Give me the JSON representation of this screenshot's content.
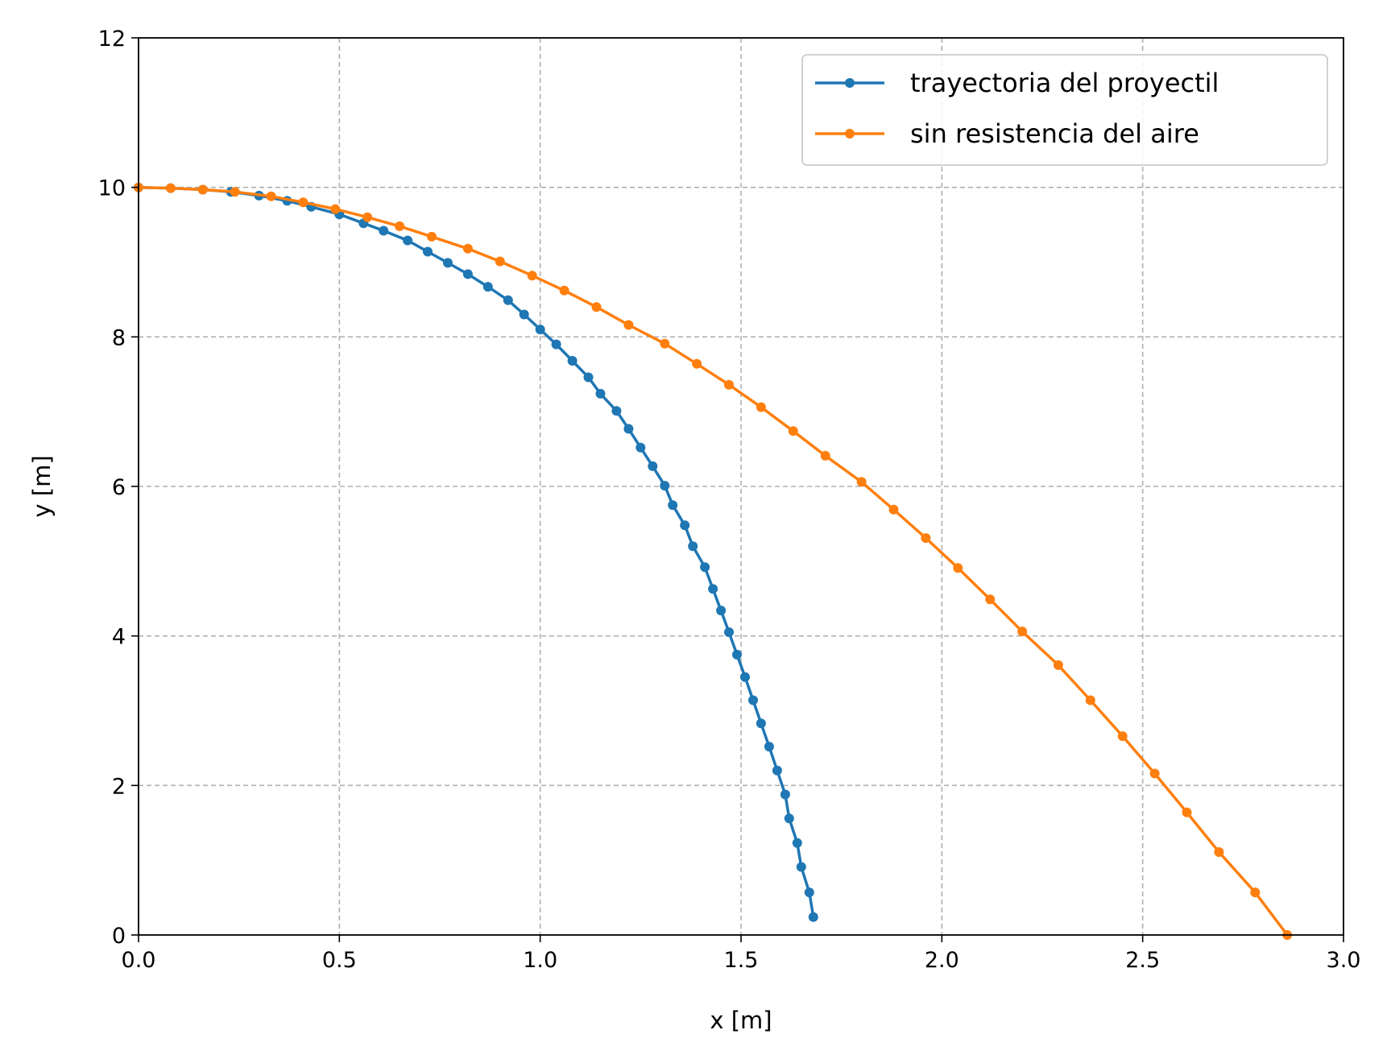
{
  "chart_data": {
    "type": "line",
    "xlabel": "x [m]",
    "ylabel": "y [m]",
    "xlim": [
      0,
      3
    ],
    "ylim": [
      0,
      12
    ],
    "xticks": [
      "0.0",
      "0.5",
      "1.0",
      "1.5",
      "2.0",
      "2.5",
      "3.0"
    ],
    "yticks": [
      "0",
      "2",
      "4",
      "6",
      "8",
      "10",
      "12"
    ],
    "grid": true,
    "legend_position": "top-right",
    "series": [
      {
        "name": "trayectoria del proyectil",
        "color": "#1f77b4",
        "marker": "circle",
        "points": [
          [
            0.0,
            10.0
          ],
          [
            0.08,
            9.99
          ],
          [
            0.16,
            9.97
          ],
          [
            0.23,
            9.94
          ],
          [
            0.3,
            9.89
          ],
          [
            0.37,
            9.82
          ],
          [
            0.43,
            9.74
          ],
          [
            0.5,
            9.64
          ],
          [
            0.56,
            9.52
          ],
          [
            0.61,
            9.42
          ],
          [
            0.67,
            9.29
          ],
          [
            0.72,
            9.14
          ],
          [
            0.77,
            8.99
          ],
          [
            0.82,
            8.84
          ],
          [
            0.87,
            8.67
          ],
          [
            0.92,
            8.49
          ],
          [
            0.96,
            8.3
          ],
          [
            1.0,
            8.1
          ],
          [
            1.04,
            7.9
          ],
          [
            1.08,
            7.68
          ],
          [
            1.12,
            7.46
          ],
          [
            1.15,
            7.24
          ],
          [
            1.19,
            7.01
          ],
          [
            1.22,
            6.77
          ],
          [
            1.25,
            6.52
          ],
          [
            1.28,
            6.27
          ],
          [
            1.31,
            6.01
          ],
          [
            1.33,
            5.75
          ],
          [
            1.36,
            5.48
          ],
          [
            1.38,
            5.2
          ],
          [
            1.41,
            4.92
          ],
          [
            1.43,
            4.63
          ],
          [
            1.45,
            4.34
          ],
          [
            1.47,
            4.05
          ],
          [
            1.49,
            3.75
          ],
          [
            1.51,
            3.45
          ],
          [
            1.53,
            3.14
          ],
          [
            1.55,
            2.83
          ],
          [
            1.57,
            2.52
          ],
          [
            1.59,
            2.2
          ],
          [
            1.61,
            1.88
          ],
          [
            1.62,
            1.56
          ],
          [
            1.64,
            1.23
          ],
          [
            1.65,
            0.91
          ],
          [
            1.67,
            0.57
          ],
          [
            1.68,
            0.24
          ]
        ]
      },
      {
        "name": "sin resistencia del aire",
        "color": "#ff7f0e",
        "marker": "circle",
        "points": [
          [
            0.0,
            10.0
          ],
          [
            0.08,
            9.99
          ],
          [
            0.16,
            9.97
          ],
          [
            0.24,
            9.94
          ],
          [
            0.33,
            9.88
          ],
          [
            0.41,
            9.8
          ],
          [
            0.49,
            9.71
          ],
          [
            0.57,
            9.6
          ],
          [
            0.65,
            9.48
          ],
          [
            0.73,
            9.34
          ],
          [
            0.82,
            9.18
          ],
          [
            0.9,
            9.01
          ],
          [
            0.98,
            8.82
          ],
          [
            1.06,
            8.62
          ],
          [
            1.14,
            8.4
          ],
          [
            1.22,
            8.16
          ],
          [
            1.31,
            7.91
          ],
          [
            1.39,
            7.64
          ],
          [
            1.47,
            7.36
          ],
          [
            1.55,
            7.06
          ],
          [
            1.63,
            6.74
          ],
          [
            1.71,
            6.41
          ],
          [
            1.8,
            6.06
          ],
          [
            1.88,
            5.69
          ],
          [
            1.96,
            5.31
          ],
          [
            2.04,
            4.91
          ],
          [
            2.12,
            4.49
          ],
          [
            2.2,
            4.06
          ],
          [
            2.29,
            3.61
          ],
          [
            2.37,
            3.14
          ],
          [
            2.45,
            2.66
          ],
          [
            2.53,
            2.16
          ],
          [
            2.61,
            1.64
          ],
          [
            2.69,
            1.11
          ],
          [
            2.78,
            0.57
          ],
          [
            2.86,
            0.0
          ]
        ]
      }
    ]
  }
}
